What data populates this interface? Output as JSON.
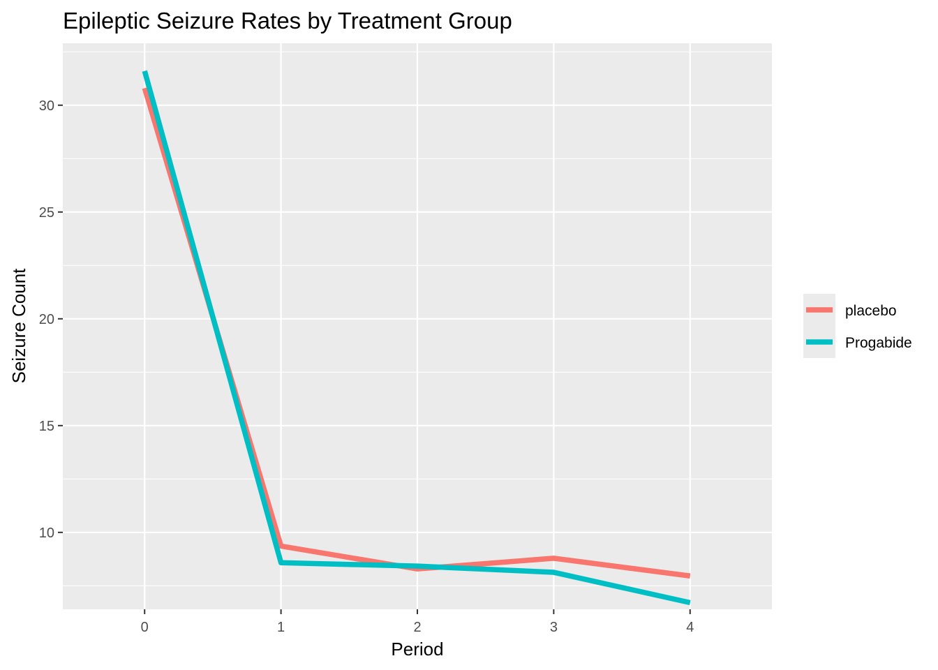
{
  "chart_data": {
    "type": "line",
    "title": "Epileptic Seizure Rates by Treatment Group",
    "xlabel": "Period",
    "ylabel": "Seizure Count",
    "x": [
      0,
      1,
      2,
      3,
      4
    ],
    "xlim": [
      -0.6,
      4.6
    ],
    "ylim": [
      6.4,
      32.9
    ],
    "xticks": [
      "0",
      "1",
      "2",
      "3",
      "4"
    ],
    "yticks": [
      10,
      15,
      20,
      25,
      30
    ],
    "yminor": [
      7.5,
      12.5,
      17.5,
      22.5,
      27.5,
      32.5
    ],
    "grid": true,
    "legend_position": "right",
    "series": [
      {
        "name": "placebo",
        "color": "#F8766D",
        "values": [
          30.8,
          9.36,
          8.29,
          8.79,
          7.96
        ]
      },
      {
        "name": "Progabide",
        "color": "#00BFC4",
        "values": [
          31.6,
          8.58,
          8.42,
          8.13,
          6.71
        ]
      }
    ],
    "colors": {
      "panel": "#EBEBEB",
      "grid": "#FFFFFF",
      "tick": "#333333"
    }
  }
}
